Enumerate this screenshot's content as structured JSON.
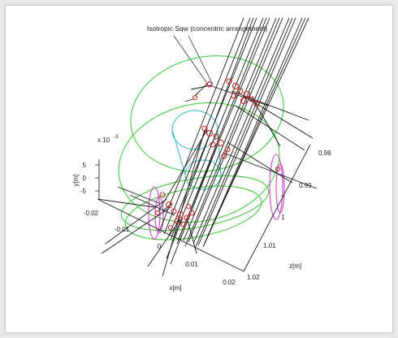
{
  "figure": {
    "title": "Isotropic Sqw (concentric arrangement)",
    "y_axis": {
      "label": "y[m]",
      "exponent": "x 10",
      "exponent_power": "-3",
      "ticks": [
        "5",
        "0",
        "-5"
      ]
    },
    "x_axis": {
      "label": "x[m]",
      "ticks": [
        "-0.02",
        "-0.01",
        "0",
        "0.01",
        "0.02"
      ]
    },
    "z_axis": {
      "label": "z[m]",
      "ticks": [
        "0.98",
        "0.99",
        "1",
        "1.01",
        "1.02"
      ]
    },
    "colors": {
      "rays": "#1a1a1a",
      "scatter_points": "#cc2020",
      "outer_cylinder": "#44cc44",
      "inner_cylinder": "#33bbbb",
      "end_caps": "#cc44cc",
      "axes": "#222222"
    }
  }
}
